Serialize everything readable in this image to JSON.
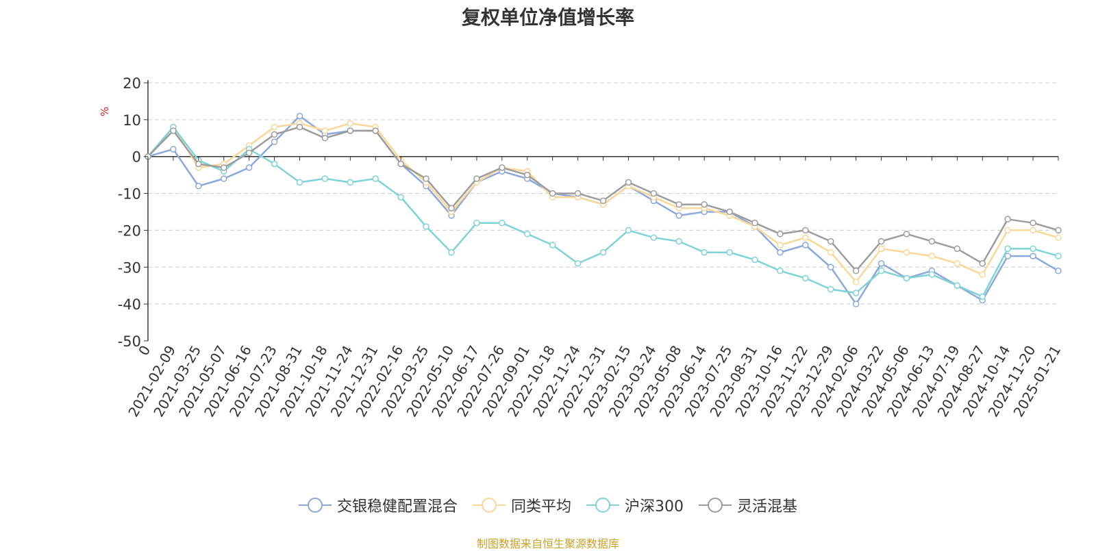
{
  "chart_data": {
    "type": "line",
    "title": "复权单位净值增长率",
    "ylabel": "%",
    "xlabel": "",
    "ylim": [
      -50,
      20
    ],
    "yticks": [
      20,
      10,
      0,
      -10,
      -20,
      -30,
      -40,
      -50
    ],
    "x_labels": [
      "0",
      "2021-02-09",
      "2021-03-25",
      "2021-05-07",
      "2021-06-16",
      "2021-07-23",
      "2021-08-31",
      "2021-10-18",
      "2021-11-24",
      "2021-12-31",
      "2022-02-16",
      "2022-03-25",
      "2022-05-10",
      "2022-06-17",
      "2022-07-26",
      "2022-09-01",
      "2022-10-18",
      "2022-11-24",
      "2022-12-31",
      "2023-02-15",
      "2023-03-24",
      "2023-05-08",
      "2023-06-14",
      "2023-07-25",
      "2023-08-31",
      "2023-10-16",
      "2023-11-22",
      "2023-12-29",
      "2024-02-06",
      "2024-03-22",
      "2024-05-06",
      "2024-06-13",
      "2024-07-19",
      "2024-08-27",
      "2024-10-14",
      "2024-11-20",
      "2025-01-21"
    ],
    "series": [
      {
        "name": "交银稳健配置混合",
        "color": "#8aa8dc",
        "values": [
          0,
          2,
          -8,
          -6,
          -3,
          4,
          11,
          6,
          7,
          7,
          -2,
          -8,
          -16,
          -7,
          -4,
          -6,
          -10,
          -11,
          -13,
          -8,
          -12,
          -16,
          -15,
          -15,
          -19,
          -26,
          -24,
          -30,
          -40,
          -29,
          -33,
          -31,
          -35,
          -39,
          -27,
          -27,
          -31
        ]
      },
      {
        "name": "同类平均",
        "color": "#fad797",
        "values": [
          0,
          8,
          -3,
          -2,
          3,
          8,
          9,
          7,
          9,
          8,
          -1,
          -7,
          -15,
          -7,
          -3,
          -4,
          -11,
          -11,
          -13,
          -8,
          -11,
          -14,
          -14,
          -16,
          -19,
          -24,
          -22,
          -26,
          -34,
          -25,
          -26,
          -27,
          -29,
          -32,
          -20,
          -20,
          -22
        ]
      },
      {
        "name": "沪深300",
        "color": "#7ed3d6",
        "values": [
          0,
          8,
          -1,
          -4,
          2,
          -2,
          -7,
          -6,
          -7,
          -6,
          -11,
          -19,
          -26,
          -18,
          -18,
          -21,
          -24,
          -29,
          -26,
          -20,
          -22,
          -23,
          -26,
          -26,
          -28,
          -31,
          -33,
          -36,
          -37,
          -31,
          -33,
          -32,
          -35,
          -38,
          -25,
          -25,
          -27
        ]
      },
      {
        "name": "灵活混基",
        "color": "#9c9c9c",
        "values": [
          0,
          7,
          -2,
          -3,
          1,
          6,
          8,
          5,
          7,
          7,
          -2,
          -6,
          -14,
          -6,
          -3,
          -5,
          -10,
          -10,
          -12,
          -7,
          -10,
          -13,
          -13,
          -15,
          -18,
          -21,
          -20,
          -23,
          -31,
          -23,
          -21,
          -23,
          -25,
          -29,
          -17,
          -18,
          -20
        ]
      }
    ]
  },
  "footer": {
    "source": "制图数据来自恒生聚源数据库"
  }
}
